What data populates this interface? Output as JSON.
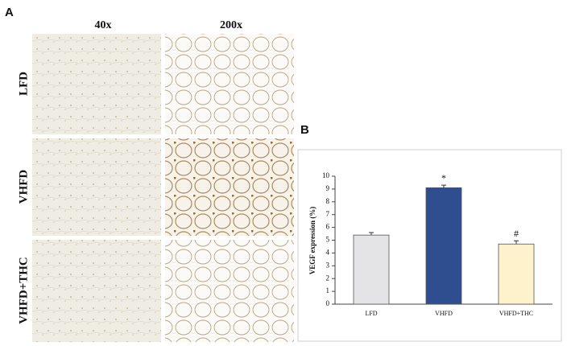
{
  "panel_a": {
    "label": "A",
    "columns": [
      "40x",
      "200x"
    ],
    "rows": [
      "LFD",
      "VHFD",
      "VHFD+THC"
    ]
  },
  "chart_data": {
    "type": "bar",
    "panel_label": "B",
    "ylabel": "VEGF expression (%)",
    "categories": [
      "LFD",
      "VHFD",
      "VHFD+THC"
    ],
    "values": [
      5.4,
      9.1,
      4.7
    ],
    "errors": [
      0.2,
      0.2,
      0.25
    ],
    "colors": [
      "#e4e4e7",
      "#2f4e90",
      "#fdf2cc"
    ],
    "annotations": [
      {
        "text": "*",
        "x": "VHFD"
      },
      {
        "text": "#",
        "x": "VHFD+THC"
      }
    ],
    "ylim": [
      0,
      10
    ],
    "yticks": [
      0,
      1,
      2,
      3,
      4,
      5,
      6,
      7,
      8,
      9,
      10
    ]
  }
}
